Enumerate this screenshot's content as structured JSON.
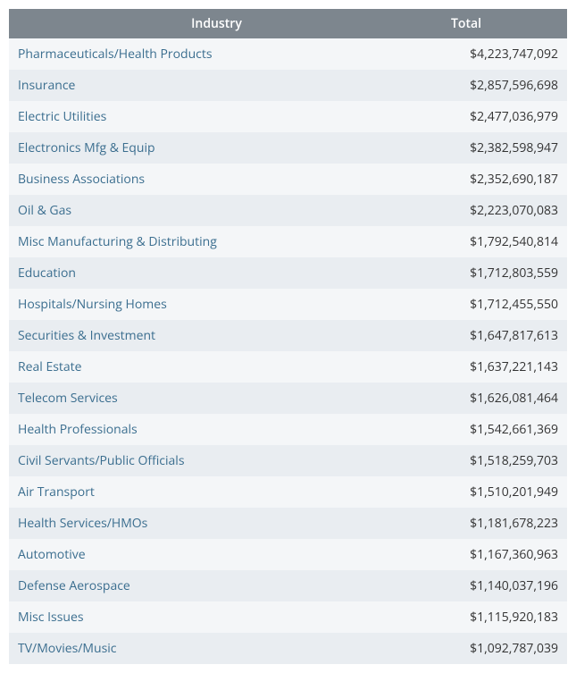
{
  "table": {
    "type": "table",
    "header_bg_color": "#7d868e",
    "header_text_color": "#ffffff",
    "row_alt_bg_color_1": "#e9edf1",
    "row_alt_bg_color_2": "#f4f6f8",
    "link_color": "#3b6e8f",
    "value_color": "#333333",
    "font_size": 14,
    "columns": [
      {
        "key": "industry",
        "label": "Industry",
        "align": "left"
      },
      {
        "key": "total",
        "label": "Total",
        "align": "right"
      }
    ],
    "rows": [
      {
        "industry": "Pharmaceuticals/Health Products",
        "total": "$4,223,747,092"
      },
      {
        "industry": "Insurance",
        "total": "$2,857,596,698"
      },
      {
        "industry": "Electric Utilities",
        "total": "$2,477,036,979"
      },
      {
        "industry": "Electronics Mfg & Equip",
        "total": "$2,382,598,947"
      },
      {
        "industry": "Business Associations",
        "total": "$2,352,690,187"
      },
      {
        "industry": "Oil & Gas",
        "total": "$2,223,070,083"
      },
      {
        "industry": "Misc Manufacturing & Distributing",
        "total": "$1,792,540,814"
      },
      {
        "industry": "Education",
        "total": "$1,712,803,559"
      },
      {
        "industry": "Hospitals/Nursing Homes",
        "total": "$1,712,455,550"
      },
      {
        "industry": "Securities & Investment",
        "total": "$1,647,817,613"
      },
      {
        "industry": "Real Estate",
        "total": "$1,637,221,143"
      },
      {
        "industry": "Telecom Services",
        "total": "$1,626,081,464"
      },
      {
        "industry": "Health Professionals",
        "total": "$1,542,661,369"
      },
      {
        "industry": "Civil Servants/Public Officials",
        "total": "$1,518,259,703"
      },
      {
        "industry": "Air Transport",
        "total": "$1,510,201,949"
      },
      {
        "industry": "Health Services/HMOs",
        "total": "$1,181,678,223"
      },
      {
        "industry": "Automotive",
        "total": "$1,167,360,963"
      },
      {
        "industry": "Defense Aerospace",
        "total": "$1,140,037,196"
      },
      {
        "industry": "Misc Issues",
        "total": "$1,115,920,183"
      },
      {
        "industry": "TV/Movies/Music",
        "total": "$1,092,787,039"
      }
    ]
  }
}
